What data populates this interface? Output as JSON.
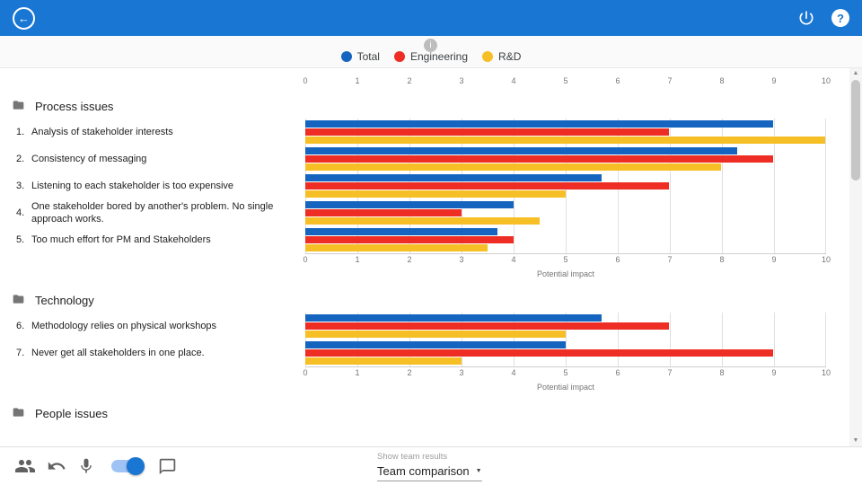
{
  "icons": {
    "back": "←",
    "help": "?",
    "info": "i",
    "caret": "▼",
    "scroll_up": "▲",
    "scroll_down": "▼"
  },
  "chart_data": {
    "type": "bar",
    "orientation": "horizontal",
    "xlabel": "Potential impact",
    "xlim": [
      0,
      10
    ],
    "ticks": [
      0,
      1,
      2,
      3,
      4,
      5,
      6,
      7,
      8,
      9,
      10
    ],
    "grid": true,
    "legend_position": "top-center",
    "series": [
      {
        "name": "Total",
        "color": "#1565c0"
      },
      {
        "name": "Engineering",
        "color": "#ee2e24"
      },
      {
        "name": "R&D",
        "color": "#f6bf26"
      }
    ],
    "sections": [
      {
        "title": "Process issues",
        "items": [
          {
            "num": "1.",
            "label": "Analysis of stakeholder interests",
            "values": [
              9,
              7,
              10
            ]
          },
          {
            "num": "2.",
            "label": "Consistency of messaging",
            "values": [
              8.3,
              9,
              8
            ]
          },
          {
            "num": "3.",
            "label": "Listening to each stakeholder is too expensive",
            "values": [
              5.7,
              7,
              5
            ]
          },
          {
            "num": "4.",
            "label": "One stakeholder bored by another's problem. No single approach works.",
            "values": [
              4,
              3,
              4.5
            ]
          },
          {
            "num": "5.",
            "label": "Too much effort for PM and Stakeholders",
            "values": [
              3.7,
              4,
              3.5
            ]
          }
        ]
      },
      {
        "title": "Technology",
        "items": [
          {
            "num": "6.",
            "label": "Methodology relies on physical workshops",
            "values": [
              5.7,
              7,
              5
            ]
          },
          {
            "num": "7.",
            "label": "Never get all stakeholders in one place.",
            "values": [
              5,
              9,
              3
            ]
          }
        ]
      },
      {
        "title": "People issues",
        "items": []
      }
    ]
  },
  "bottom_bar": {
    "show_team_results_label": "Show team results",
    "team_dropdown_value": "Team comparison",
    "toggle_on": true
  }
}
